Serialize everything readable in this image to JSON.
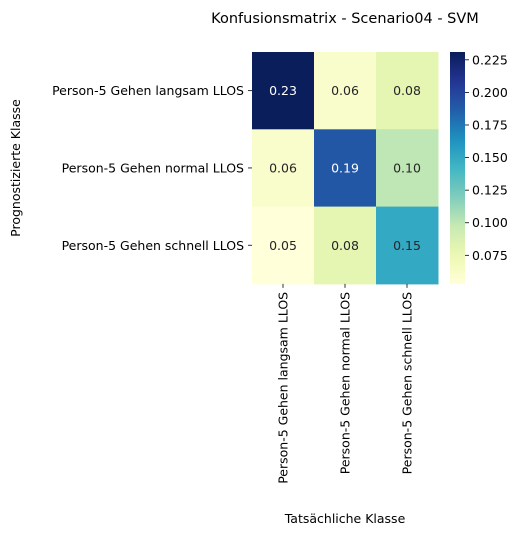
{
  "chart_data": {
    "type": "heatmap",
    "title": "Konfusionsmatrix - Scenario04 - SVM",
    "xlabel": "Tatsächliche Klasse",
    "ylabel": "Prognostizierte Klasse",
    "x_categories": [
      "Person-5 Gehen langsam LLOS",
      "Person-5 Gehen normal LLOS",
      "Person-5 Gehen schnell LLOS"
    ],
    "y_categories": [
      "Person-5 Gehen langsam LLOS",
      "Person-5 Gehen normal LLOS",
      "Person-5 Gehen schnell LLOS"
    ],
    "values": [
      [
        0.23,
        0.06,
        0.08
      ],
      [
        0.06,
        0.19,
        0.1
      ],
      [
        0.05,
        0.08,
        0.15
      ]
    ],
    "value_labels": [
      [
        "0.23",
        "0.06",
        "0.08"
      ],
      [
        "0.06",
        "0.19",
        "0.10"
      ],
      [
        "0.05",
        "0.08",
        "0.15"
      ]
    ],
    "colormap": "YlGnBu",
    "colorbar": {
      "min": 0.053,
      "max": 0.231,
      "ticks": [
        0.075,
        0.1,
        0.125,
        0.15,
        0.175,
        0.2,
        0.225
      ],
      "tick_labels": [
        "0.075",
        "0.100",
        "0.125",
        "0.150",
        "0.175",
        "0.200",
        "0.225"
      ]
    }
  }
}
